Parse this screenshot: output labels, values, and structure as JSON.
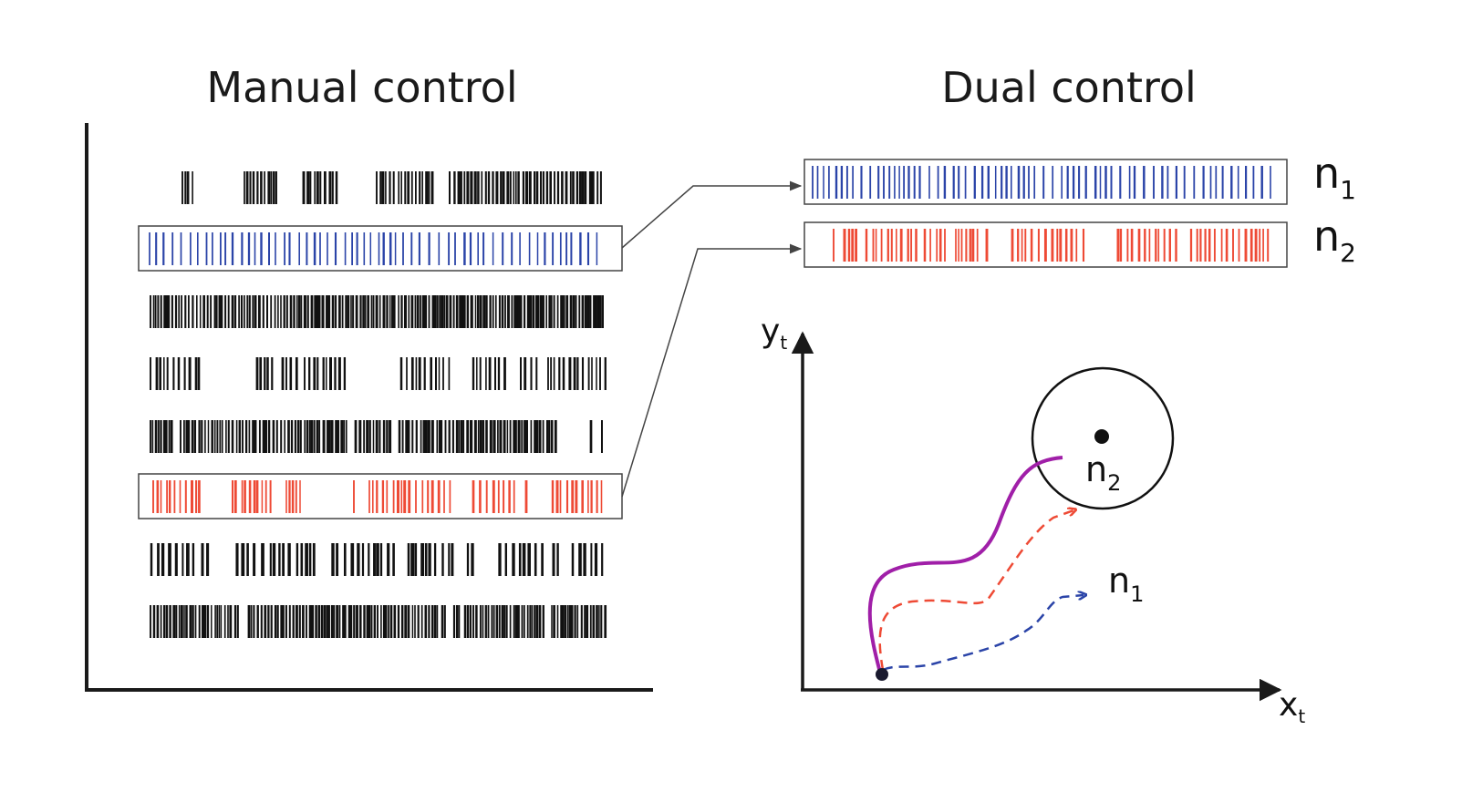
{
  "titles": {
    "manual": "Manual control",
    "dual": "Dual control"
  },
  "colors": {
    "neuron_1": "#2b44a8",
    "neuron_2": "#ee4a35",
    "raster_other": "#111111",
    "cursor_path": "#a01fa8",
    "axis": "#1a1a1a"
  },
  "labels": {
    "n1": {
      "base": "n",
      "sub": "1"
    },
    "n2": {
      "base": "n",
      "sub": "2"
    },
    "axis_x": {
      "base": "x",
      "sub": "t"
    },
    "axis_y": {
      "base": "y",
      "sub": "t"
    }
  },
  "manual_raster": [
    {
      "neuron": "other",
      "color": "#111111"
    },
    {
      "neuron": "n1",
      "color": "#2b44a8"
    },
    {
      "neuron": "other",
      "color": "#111111"
    },
    {
      "neuron": "other",
      "color": "#111111"
    },
    {
      "neuron": "other",
      "color": "#111111"
    },
    {
      "neuron": "n2",
      "color": "#ee4a35"
    },
    {
      "neuron": "other",
      "color": "#111111"
    },
    {
      "neuron": "other",
      "color": "#111111"
    }
  ],
  "dual_raster": [
    {
      "neuron": "n1",
      "color": "#2b44a8"
    },
    {
      "neuron": "n2",
      "color": "#ee4a35"
    }
  ],
  "trajectory_plot": {
    "cursor_path_color": "#a01fa8",
    "n2_direction_color": "#ee4a35",
    "n1_direction_color": "#2b44a8"
  }
}
